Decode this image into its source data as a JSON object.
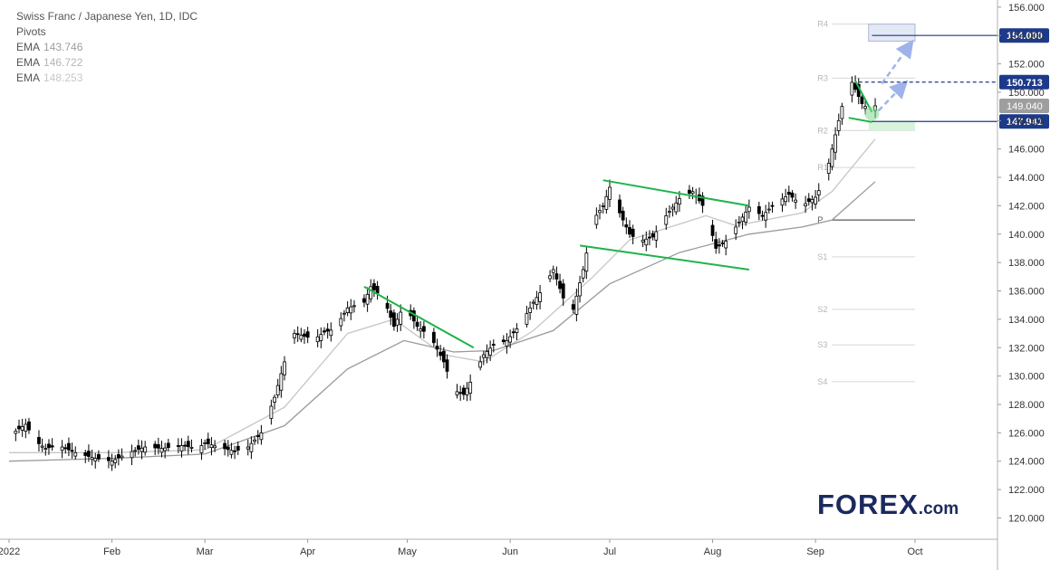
{
  "legend": {
    "symbol": "Swiss Franc / Japanese Yen, 1D, IDC",
    "pivots_label": "Pivots",
    "emas": [
      {
        "label": "EMA",
        "value": "143.746",
        "color": "#9e9e9e"
      },
      {
        "label": "EMA",
        "value": "146.722",
        "color": "#bdbdbd"
      },
      {
        "label": "EMA",
        "value": "148.253",
        "color": "#d0d0d0"
      }
    ]
  },
  "logo": {
    "main": "FOREX",
    "suffix": ".com"
  },
  "chart_data": {
    "type": "candlestick",
    "ylim": [
      118.5,
      156.5
    ],
    "y_ticks": [
      "156.000",
      "154.000",
      "152.000",
      "150.000",
      "148.000",
      "146.000",
      "144.000",
      "142.000",
      "140.000",
      "138.000",
      "136.000",
      "134.000",
      "132.000",
      "130.000",
      "128.000",
      "126.000",
      "124.000",
      "122.000",
      "120.000"
    ],
    "x_ticks": [
      {
        "label": "2022",
        "date": "2022-01-01"
      },
      {
        "label": "Feb",
        "date": "2022-02-01"
      },
      {
        "label": "Mar",
        "date": "2022-03-01"
      },
      {
        "label": "Apr",
        "date": "2022-04-01"
      },
      {
        "label": "May",
        "date": "2022-05-01"
      },
      {
        "label": "Jun",
        "date": "2022-06-01"
      },
      {
        "label": "Jul",
        "date": "2022-07-01"
      },
      {
        "label": "Aug",
        "date": "2022-08-01"
      },
      {
        "label": "Sep",
        "date": "2022-09-01"
      },
      {
        "label": "Oct",
        "date": "2022-10-01"
      }
    ],
    "close_path": [
      [
        "2022-01-01",
        125.8
      ],
      [
        "2022-01-06",
        126.6
      ],
      [
        "2022-01-09",
        125.4
      ],
      [
        "2022-01-12",
        124.9
      ],
      [
        "2022-01-16",
        125.1
      ],
      [
        "2022-01-21",
        124.6
      ],
      [
        "2022-01-27",
        124.2
      ],
      [
        "2022-02-01",
        124.0
      ],
      [
        "2022-02-06",
        124.6
      ],
      [
        "2022-02-11",
        125.0
      ],
      [
        "2022-02-16",
        124.9
      ],
      [
        "2022-02-22",
        125.1
      ],
      [
        "2022-02-27",
        124.9
      ],
      [
        "2022-03-01",
        125.3
      ],
      [
        "2022-03-05",
        125.0
      ],
      [
        "2022-03-10",
        124.7
      ],
      [
        "2022-03-14",
        125.0
      ],
      [
        "2022-03-18",
        126.0
      ],
      [
        "2022-03-22",
        128.5
      ],
      [
        "2022-03-25",
        131.0
      ],
      [
        "2022-03-28",
        133.0
      ],
      [
        "2022-03-31",
        132.8
      ],
      [
        "2022-04-03",
        132.6
      ],
      [
        "2022-04-06",
        133.1
      ],
      [
        "2022-04-09",
        133.3
      ],
      [
        "2022-04-13",
        134.8
      ],
      [
        "2022-04-18",
        135.2
      ],
      [
        "2022-04-20",
        136.3
      ],
      [
        "2022-04-24",
        135.4
      ],
      [
        "2022-04-27",
        133.5
      ],
      [
        "2022-04-30",
        135.0
      ],
      [
        "2022-05-04",
        133.5
      ],
      [
        "2022-05-08",
        132.8
      ],
      [
        "2022-05-12",
        131.0
      ],
      [
        "2022-05-15",
        129.0
      ],
      [
        "2022-05-18",
        128.7
      ],
      [
        "2022-05-21",
        130.0
      ],
      [
        "2022-05-24",
        131.5
      ],
      [
        "2022-05-27",
        132.2
      ],
      [
        "2022-05-31",
        132.5
      ],
      [
        "2022-06-04",
        133.6
      ],
      [
        "2022-06-08",
        135.2
      ],
      [
        "2022-06-11",
        136.2
      ],
      [
        "2022-06-14",
        137.5
      ],
      [
        "2022-06-17",
        135.5
      ],
      [
        "2022-06-20",
        134.7
      ],
      [
        "2022-06-23",
        137.5
      ],
      [
        "2022-06-26",
        141.0
      ],
      [
        "2022-06-29",
        142.0
      ],
      [
        "2022-07-01",
        143.3
      ],
      [
        "2022-07-04",
        141.5
      ],
      [
        "2022-07-07",
        140.0
      ],
      [
        "2022-07-10",
        139.5
      ],
      [
        "2022-07-14",
        139.8
      ],
      [
        "2022-07-18",
        141.3
      ],
      [
        "2022-07-22",
        142.5
      ],
      [
        "2022-07-26",
        143.0
      ],
      [
        "2022-07-30",
        141.7
      ],
      [
        "2022-08-02",
        139.0
      ],
      [
        "2022-08-05",
        139.5
      ],
      [
        "2022-08-08",
        140.5
      ],
      [
        "2022-08-12",
        141.9
      ],
      [
        "2022-08-16",
        141.3
      ],
      [
        "2022-08-19",
        142.0
      ],
      [
        "2022-08-24",
        142.8
      ],
      [
        "2022-08-28",
        142.0
      ],
      [
        "2022-09-01",
        142.6
      ],
      [
        "2022-09-04",
        144.0
      ],
      [
        "2022-09-06",
        146.0
      ],
      [
        "2022-09-09",
        149.0
      ],
      [
        "2022-09-12",
        150.7
      ],
      [
        "2022-09-15",
        149.2
      ],
      [
        "2022-09-18",
        148.6
      ],
      [
        "2022-09-19",
        149.04
      ]
    ],
    "last_price": "149.040",
    "levels": [
      {
        "label": "154.000",
        "value": 154.0,
        "style": "solid"
      },
      {
        "label": "150.713",
        "value": 150.713,
        "style": "dashed"
      },
      {
        "label": "147.941",
        "value": 147.941,
        "style": "solid"
      }
    ],
    "pivots": [
      {
        "label": "R4",
        "value": 154.8
      },
      {
        "label": "R3",
        "value": 151.0
      },
      {
        "label": "R2",
        "value": 147.3
      },
      {
        "label": "R1",
        "value": 144.7
      },
      {
        "label": "P",
        "value": 141.0
      },
      {
        "label": "S1",
        "value": 138.4
      },
      {
        "label": "S2",
        "value": 134.7
      },
      {
        "label": "S3",
        "value": 132.2
      },
      {
        "label": "S4",
        "value": 129.6
      }
    ],
    "ema_lines": [
      {
        "path": [
          [
            "2022-01-01",
            124.6
          ],
          [
            "2022-02-01",
            124.6
          ],
          [
            "2022-03-01",
            124.8
          ],
          [
            "2022-03-25",
            127.8
          ],
          [
            "2022-04-13",
            133.0
          ],
          [
            "2022-04-27",
            134.0
          ],
          [
            "2022-05-12",
            131.5
          ],
          [
            "2022-05-24",
            131.0
          ],
          [
            "2022-06-08",
            133.2
          ],
          [
            "2022-06-26",
            137.0
          ],
          [
            "2022-07-07",
            139.6
          ],
          [
            "2022-07-30",
            141.3
          ],
          [
            "2022-08-08",
            140.6
          ],
          [
            "2022-08-28",
            141.5
          ],
          [
            "2022-09-06",
            143.0
          ],
          [
            "2022-09-19",
            146.7
          ]
        ]
      },
      {
        "path": [
          [
            "2022-01-01",
            124.0
          ],
          [
            "2022-02-01",
            124.2
          ],
          [
            "2022-03-01",
            124.5
          ],
          [
            "2022-03-25",
            126.5
          ],
          [
            "2022-04-13",
            130.5
          ],
          [
            "2022-04-30",
            132.5
          ],
          [
            "2022-05-15",
            131.7
          ],
          [
            "2022-05-27",
            131.8
          ],
          [
            "2022-06-14",
            133.2
          ],
          [
            "2022-07-01",
            136.5
          ],
          [
            "2022-07-22",
            138.7
          ],
          [
            "2022-08-12",
            140.0
          ],
          [
            "2022-08-28",
            140.5
          ],
          [
            "2022-09-06",
            141.0
          ],
          [
            "2022-09-19",
            143.7
          ]
        ]
      }
    ],
    "annotations": {
      "trendlines": [
        {
          "from": [
            "2022-04-18",
            136.3
          ],
          "to": [
            "2022-05-21",
            132.0
          ]
        },
        {
          "from": [
            "2022-06-29",
            143.8
          ],
          "to": [
            "2022-08-12",
            142.0
          ]
        },
        {
          "from": [
            "2022-06-22",
            139.2
          ],
          "to": [
            "2022-08-12",
            137.5
          ]
        },
        {
          "from": [
            "2022-09-13",
            150.8
          ],
          "to": [
            "2022-09-18",
            148.6
          ]
        },
        {
          "from": [
            "2022-09-11",
            148.2
          ],
          "to": [
            "2022-09-18",
            147.9
          ]
        }
      ],
      "target_box": {
        "from": [
          "2022-09-17",
          154.8
        ],
        "to": [
          "2022-10-01",
          153.6
        ]
      },
      "green_box": {
        "from": [
          "2022-09-17",
          147.9
        ],
        "to": [
          "2022-10-01",
          147.3
        ]
      },
      "arrows": [
        {
          "from": [
            "2022-09-20",
            148.7
          ],
          "to": [
            "2022-09-27",
            150.4
          ]
        },
        {
          "from": [
            "2022-09-21",
            150.6
          ],
          "to": [
            "2022-09-29",
            153.2
          ]
        }
      ]
    }
  }
}
